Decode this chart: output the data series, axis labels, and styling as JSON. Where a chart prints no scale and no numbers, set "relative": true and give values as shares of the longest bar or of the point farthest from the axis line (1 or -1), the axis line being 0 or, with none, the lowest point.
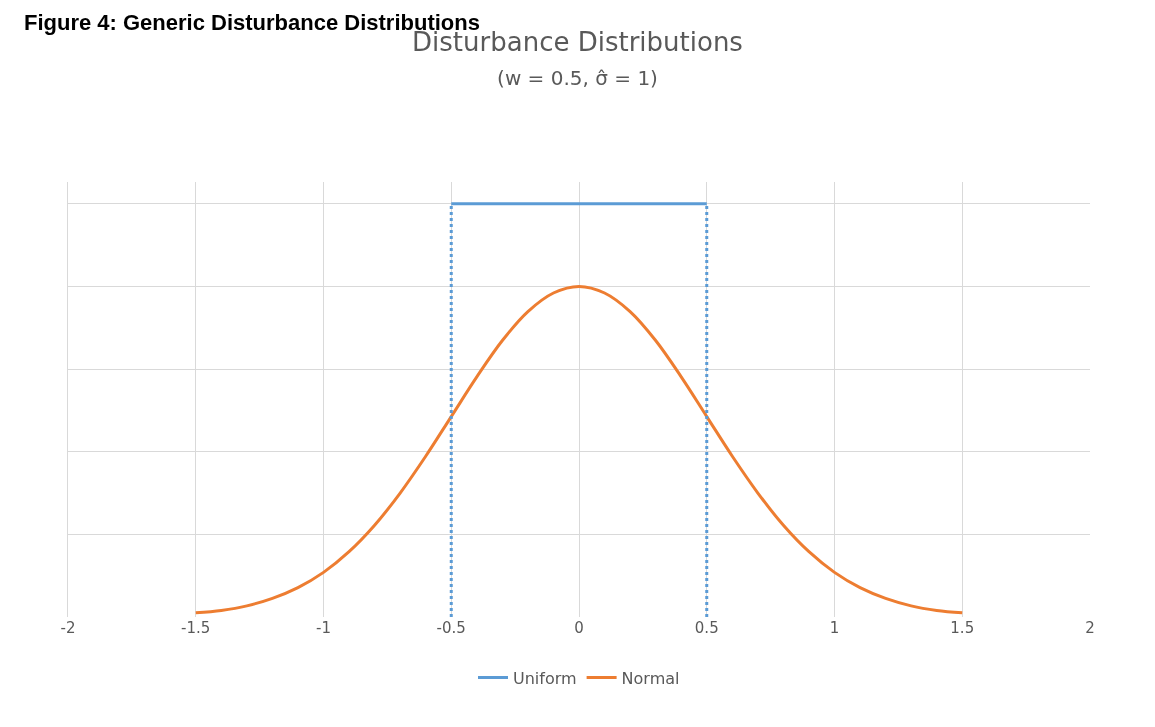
{
  "chart_data": {
    "type": "line",
    "title": "Disturbance Distributions",
    "subtitle": "(w = 0.5, σ̂ = 1)",
    "annotations": [
      "Figure 4: Generic Disturbance Distributions"
    ],
    "relative": true,
    "xlim": [
      -2,
      2
    ],
    "xticks": [
      -2,
      -1.5,
      -1,
      -0.5,
      0,
      0.5,
      1,
      1.5,
      2
    ],
    "grid": true,
    "legend": "bottom",
    "marker": "none",
    "series": [
      {
        "name": "Uniform",
        "color": "#5b9bd5",
        "x": [
          -0.5,
          0.5
        ],
        "values": [
          1,
          1
        ]
      },
      {
        "name": "Normal",
        "color": "#ed7d31",
        "x": [
          -1.5,
          -1.4,
          -1.3,
          -1.2,
          -1.1,
          -1.0,
          -0.9,
          -0.8,
          -0.7,
          -0.6,
          -0.5,
          -0.4,
          -0.3,
          -0.2,
          -0.1,
          0,
          0.1,
          0.2,
          0.3,
          0.4,
          0.5,
          0.6,
          0.7,
          0.8,
          0.9,
          1.0,
          1.1,
          1.2,
          1.3,
          1.4,
          1.5
        ],
        "values": [
          0.01,
          0.016,
          0.027,
          0.045,
          0.071,
          0.108,
          0.158,
          0.222,
          0.3,
          0.389,
          0.485,
          0.581,
          0.669,
          0.739,
          0.784,
          0.8,
          0.784,
          0.739,
          0.669,
          0.581,
          0.485,
          0.389,
          0.3,
          0.222,
          0.158,
          0.108,
          0.071,
          0.045,
          0.027,
          0.016,
          0.01
        ]
      },
      {
        "color": "#5b9bd5",
        "line_style": "dotted",
        "x": [
          -0.5,
          -0.5
        ],
        "values": [
          0,
          1
        ]
      },
      {
        "color": "#5b9bd5",
        "line_style": "dotted",
        "x": [
          0.5,
          0.5
        ],
        "values": [
          0,
          1
        ]
      }
    ]
  }
}
